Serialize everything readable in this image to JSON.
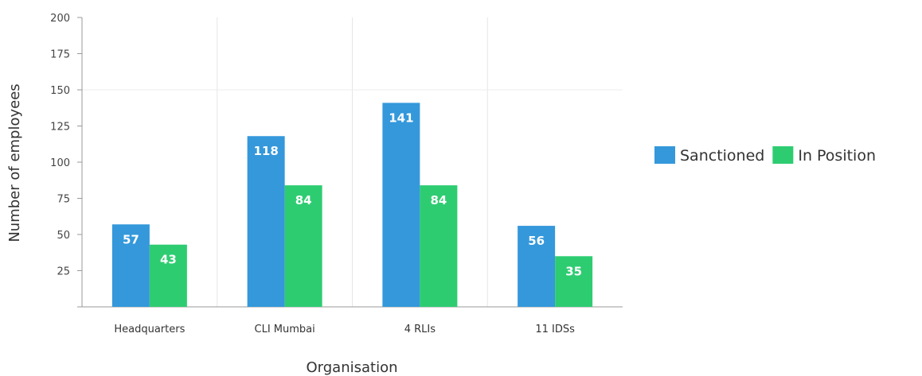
{
  "chart_data": {
    "type": "bar",
    "categories": [
      "Headquarters",
      "CLI  Mumbai",
      "4 RLIs",
      "11 IDSs"
    ],
    "series": [
      {
        "name": "Sanctioned",
        "values": [
          57,
          118,
          141,
          56
        ],
        "color": "#3498db"
      },
      {
        "name": "In Position",
        "values": [
          43,
          84,
          84,
          35
        ],
        "color": "#2ecc71"
      }
    ],
    "yticks": [
      25,
      50,
      75,
      100,
      125,
      150,
      175,
      200
    ],
    "ylim": [
      0,
      200
    ],
    "xlabel": "Organisation",
    "ylabel": "Number of employees",
    "grid": true,
    "legend": "right",
    "data_labels": true
  }
}
